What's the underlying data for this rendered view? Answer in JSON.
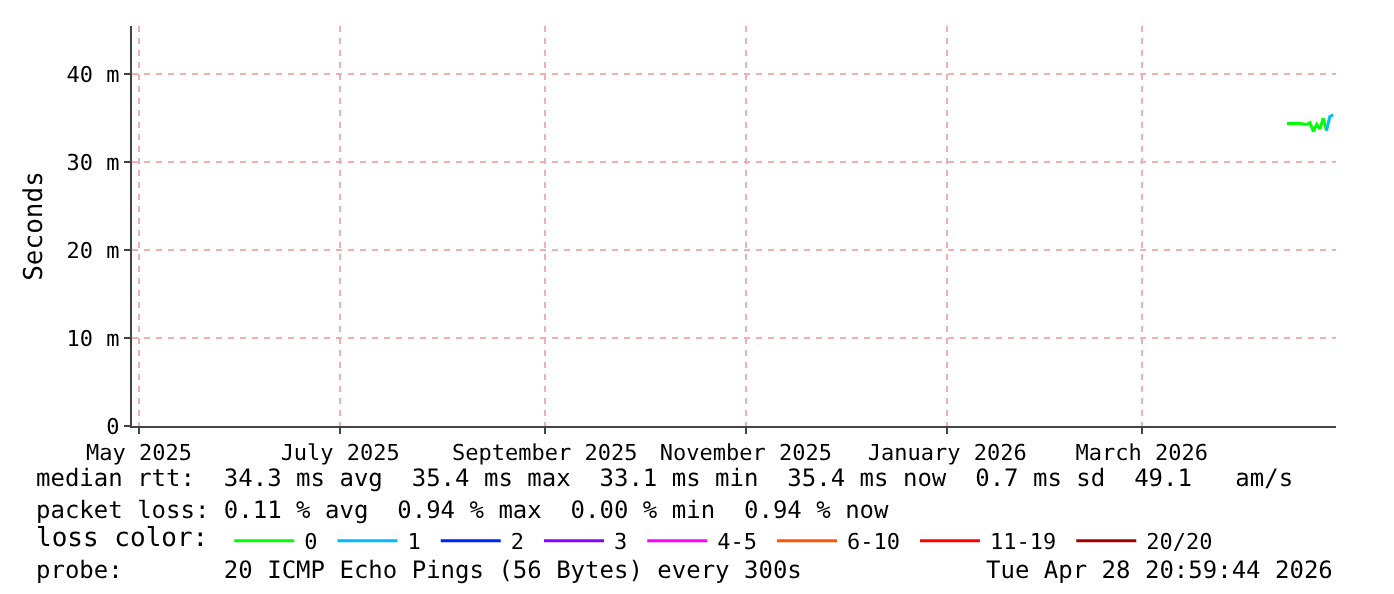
{
  "chart_data": {
    "type": "line",
    "ylabel": "Seconds",
    "legend_title": "loss color:",
    "legend": "bottom",
    "grid": true,
    "marker": "none",
    "line_style": "solid",
    "xlim": [
      "2025-04-28T21:00",
      "2026-04-28T21:00"
    ],
    "xticks": [
      {
        "value": "2025-05-01",
        "label": "May 2025"
      },
      {
        "value": "2025-07-01",
        "label": "July 2025"
      },
      {
        "value": "2025-09-01",
        "label": "September 2025"
      },
      {
        "value": "2025-11-01",
        "label": "November 2025"
      },
      {
        "value": "2026-01-01",
        "label": "January 2026"
      },
      {
        "value": "2026-03-01",
        "label": "March 2026"
      }
    ],
    "ylim": [
      0,
      45.5
    ],
    "yticks": [
      0,
      {
        "value": 10,
        "label": "10 m"
      },
      {
        "value": 20,
        "label": "20 m"
      },
      {
        "value": 30,
        "label": "30 m"
      },
      {
        "value": 40,
        "label": "40 m"
      }
    ],
    "series": [
      {
        "name": "0",
        "color": "#00ff00",
        "x": [
          "2026-04-14",
          "2026-04-16",
          "2026-04-18",
          "2026-04-20",
          "2026-04-21",
          "2026-04-22",
          "2026-04-23",
          "2026-04-24",
          "2026-04-25",
          "2026-04-26"
        ],
        "values": [
          34.4,
          34.4,
          34.4,
          34.3,
          34.5,
          33.5,
          34.3,
          33.8,
          35.0,
          33.6
        ]
      },
      {
        "name": "1",
        "color": "#00bbff",
        "x": [
          "2026-04-26",
          "2026-04-27",
          "2026-04-28"
        ],
        "values": [
          33.6,
          35.2,
          35.4
        ]
      },
      {
        "name": "2",
        "color": "#0022ff"
      },
      {
        "name": "3",
        "color": "#8a00ff"
      },
      {
        "name": "4-5",
        "color": "#ff00ff"
      },
      {
        "name": "6-10",
        "color": "#ff5500"
      },
      {
        "name": "11-19",
        "color": "#ff0000"
      },
      {
        "name": "20/20",
        "color": "#a00000"
      }
    ],
    "annotations": [
      "median rtt:  34.3 ms avg  35.4 ms max  33.1 ms min  35.4 ms now  0.7 ms sd  49.1   am/s",
      "packet loss: 0.11 % avg  0.94 % max  0.00 % min  0.94 % now",
      "probe:       20 ICMP Echo Pings (56 Bytes) every 300s",
      "Tue Apr 28 20:59:44 2026"
    ]
  }
}
